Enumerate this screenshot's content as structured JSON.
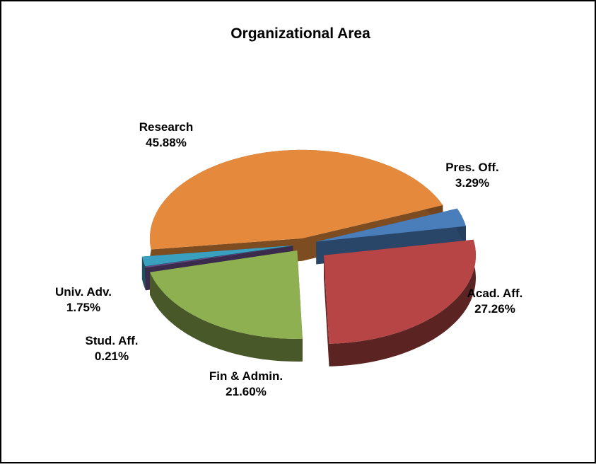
{
  "chart_data": {
    "type": "pie3d",
    "title": "Organizational Area",
    "categories": [
      "Pres. Off.",
      "Acad. Aff.",
      "Fin & Admin.",
      "Stud. Aff.",
      "Univ. Adv.",
      "Research"
    ],
    "values": [
      3.29,
      27.26,
      21.6,
      0.21,
      1.75,
      45.88
    ],
    "value_labels": [
      "3.29%",
      "27.26%",
      "21.60%",
      "0.21%",
      "1.75%",
      "45.88%"
    ],
    "colors": [
      "#4a7ebb",
      "#b84545",
      "#8fb050",
      "#6a4c8a",
      "#3aa0c0",
      "#e58a3c"
    ]
  }
}
